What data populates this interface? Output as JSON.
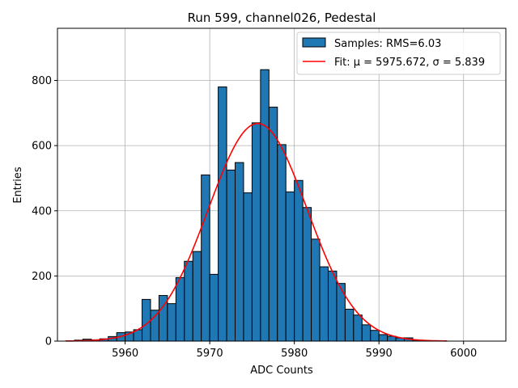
{
  "chart_data": {
    "type": "bar",
    "title": "Run 599, channel026, Pedestal",
    "xlabel": "ADC Counts",
    "ylabel": "Entries",
    "xlim": [
      5952,
      6005
    ],
    "ylim": [
      0,
      960
    ],
    "x_ticks": [
      5960,
      5970,
      5980,
      5990,
      6000
    ],
    "y_ticks": [
      0,
      200,
      400,
      600,
      800
    ],
    "grid": true,
    "legend_placement": "top-right",
    "bar_color": "#1f77b4",
    "bar_edge_color": "#000000",
    "fit_color": "#ff0000",
    "histogram": {
      "name": "Samples: RMS=6.03",
      "bin_width": 1,
      "bin_left_edges": [
        5953,
        5954,
        5955,
        5956,
        5957,
        5958,
        5959,
        5960,
        5961,
        5962,
        5963,
        5964,
        5965,
        5966,
        5967,
        5968,
        5969,
        5970,
        5971,
        5972,
        5973,
        5974,
        5975,
        5976,
        5977,
        5978,
        5979,
        5980,
        5981,
        5982,
        5983,
        5984,
        5985,
        5986,
        5987,
        5988,
        5989,
        5990,
        5991,
        5992,
        5993,
        5994,
        5995,
        5996,
        5997
      ],
      "counts": [
        1,
        3,
        6,
        4,
        7,
        14,
        26,
        28,
        35,
        128,
        95,
        140,
        115,
        195,
        245,
        275,
        510,
        205,
        780,
        525,
        548,
        455,
        670,
        833,
        718,
        603,
        458,
        493,
        410,
        313,
        228,
        215,
        177,
        98,
        80,
        50,
        33,
        20,
        15,
        10,
        10,
        3,
        2,
        1,
        1
      ]
    },
    "fit": {
      "name": "Fit: μ = 5975.672, σ = 5.839",
      "mu": 5975.672,
      "sigma": 5.839,
      "amplitude": 668,
      "x_range": [
        5953,
        5998
      ]
    }
  }
}
